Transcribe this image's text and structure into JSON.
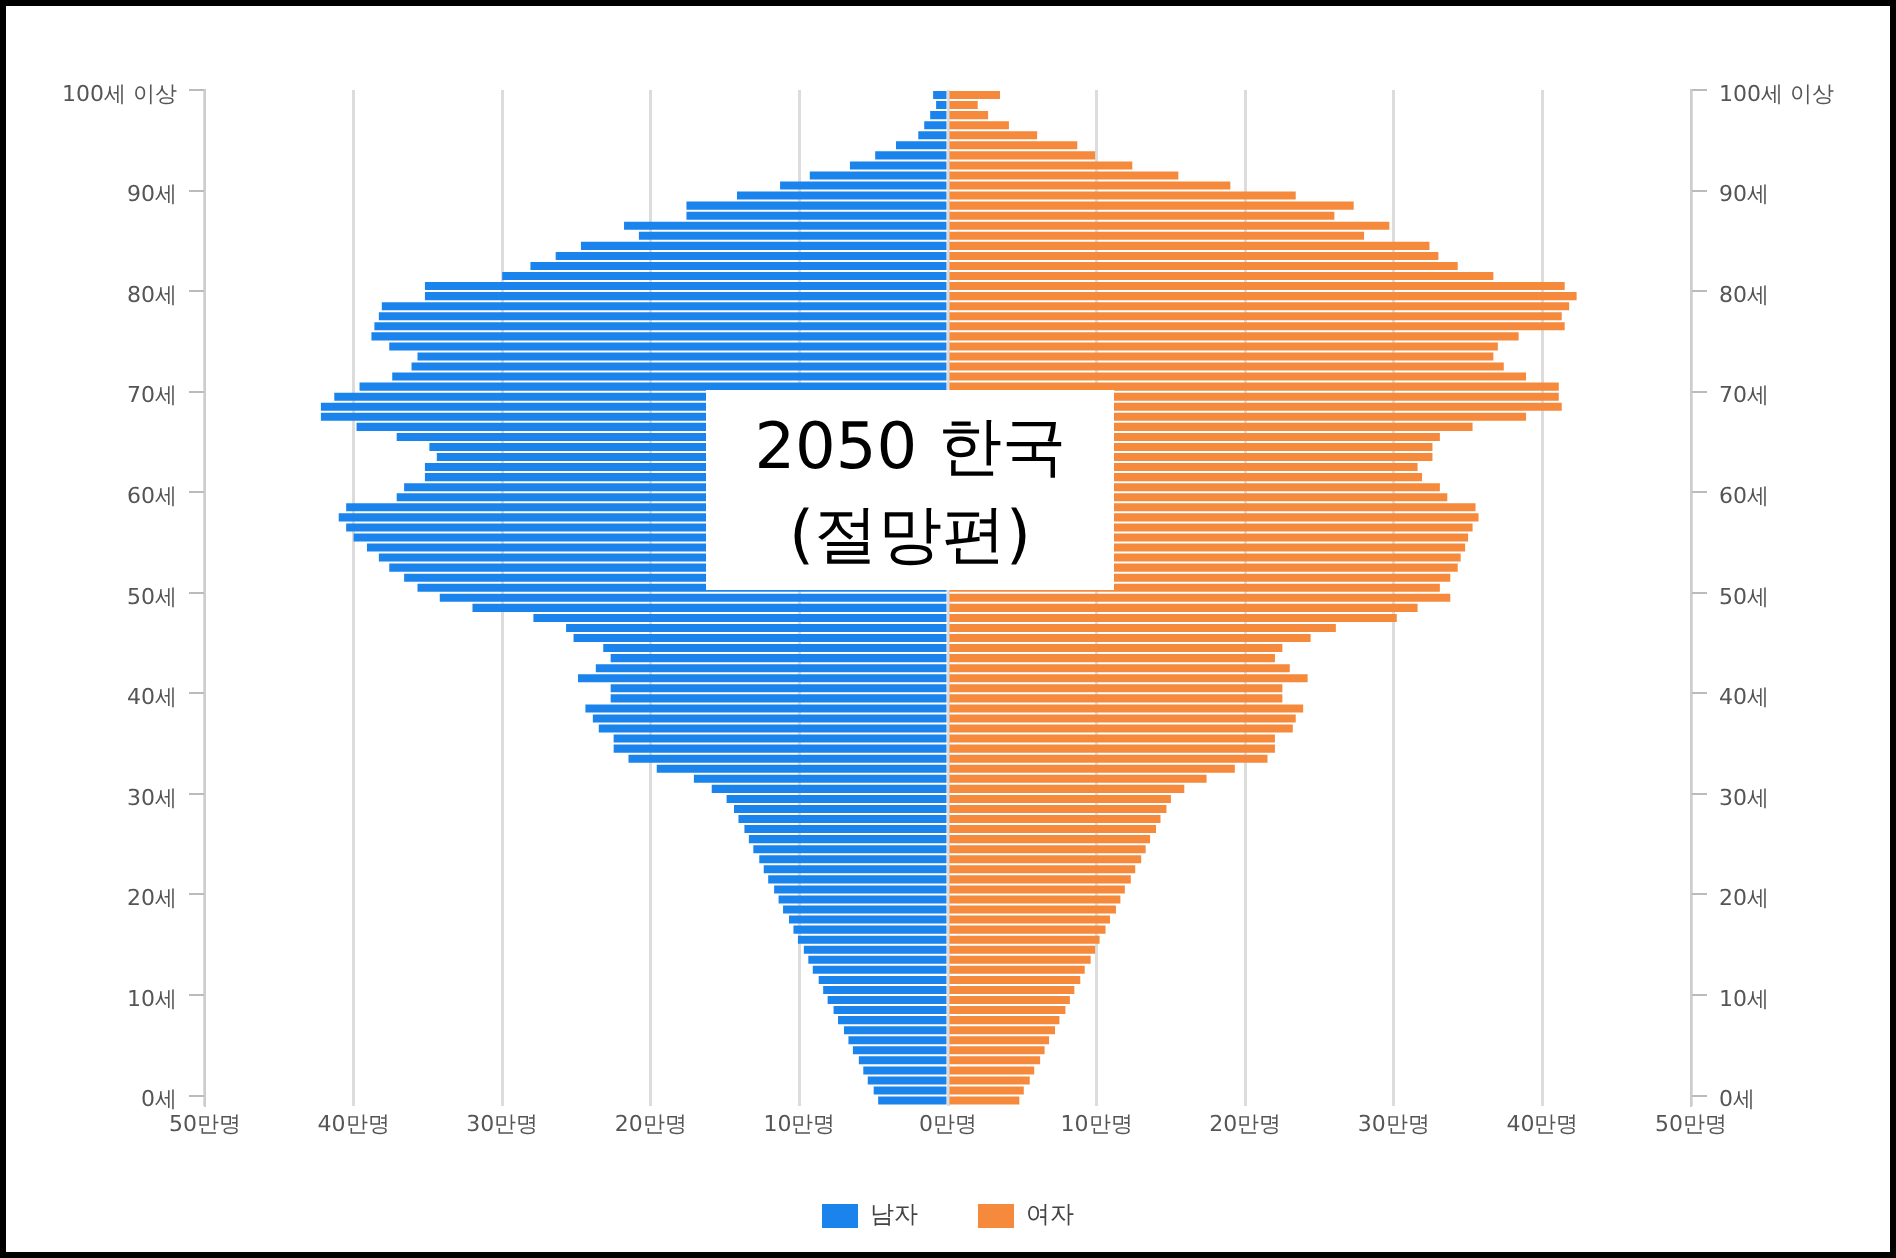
{
  "chart_data": {
    "type": "bar",
    "orientation": "horizontal",
    "categories": [
      "100세 이상",
      null,
      null,
      null,
      null,
      null,
      null,
      null,
      null,
      null,
      "90세",
      null,
      null,
      null,
      null,
      null,
      null,
      null,
      null,
      null,
      "80세",
      null,
      null,
      null,
      null,
      null,
      null,
      null,
      null,
      null,
      "70세",
      null,
      null,
      null,
      null,
      null,
      null,
      null,
      null,
      null,
      "60세",
      null,
      null,
      null,
      null,
      null,
      null,
      null,
      null,
      null,
      "50세",
      null,
      null,
      null,
      null,
      null,
      null,
      null,
      null,
      null,
      "40세",
      null,
      null,
      null,
      null,
      null,
      null,
      null,
      null,
      null,
      "30세",
      null,
      null,
      null,
      null,
      null,
      null,
      null,
      null,
      null,
      "20세",
      null,
      null,
      null,
      null,
      null,
      null,
      null,
      null,
      null,
      "10세",
      null,
      null,
      null,
      null,
      null,
      null,
      null,
      null,
      null,
      "0세"
    ],
    "series": [
      {
        "name": "남자",
        "color": "#1a84ec",
        "values": [
          -1,
          -0.8,
          -1.2,
          -1.6,
          -2,
          -3.5,
          -4.9,
          -6.6,
          -9.3,
          -11.3,
          -14.2,
          -17.6,
          -17.6,
          -21.8,
          -20.8,
          -24.7,
          -26.4,
          -28.1,
          -30,
          -35.2,
          -35.2,
          -38.1,
          -38.3,
          -38.6,
          -38.8,
          -37.6,
          -35.7,
          -36.1,
          -37.4,
          -39.6,
          -41.3,
          -42.2,
          -42.2,
          -39.8,
          -37.1,
          -34.9,
          -34.4,
          -35.2,
          -35.2,
          -36.6,
          -37.1,
          -40.5,
          -41,
          -40.5,
          -40,
          -39.1,
          -38.3,
          -37.6,
          -36.6,
          -35.7,
          -34.2,
          -32,
          -27.9,
          -25.7,
          -25.2,
          -23.2,
          -22.7,
          -23.7,
          -24.9,
          -22.7,
          -22.7,
          -24.4,
          -23.9,
          -23.5,
          -22.5,
          -22.5,
          -21.5,
          -19.6,
          -17.1,
          -15.9,
          -14.9,
          -14.4,
          -14.1,
          -13.7,
          -13.4,
          -13.1,
          -12.7,
          -12.4,
          -12.1,
          -11.7,
          -11.4,
          -11.1,
          -10.7,
          -10.4,
          -10.1,
          -9.7,
          -9.4,
          -9.1,
          -8.7,
          -8.4,
          -8.1,
          -7.7,
          -7.4,
          -7,
          -6.7,
          -6.4,
          -6,
          -5.7,
          -5.4,
          -5,
          -4.7
        ]
      },
      {
        "name": "여자",
        "color": "#f5893c",
        "values": [
          3.5,
          2,
          2.7,
          4.1,
          6,
          8.7,
          9.9,
          12.4,
          15.5,
          19,
          23.4,
          27.3,
          26,
          29.7,
          28,
          32.4,
          33,
          34.3,
          36.7,
          41.5,
          42.3,
          41.8,
          41.3,
          41.5,
          38.4,
          37,
          36.7,
          37.4,
          38.9,
          41.1,
          41.1,
          41.3,
          38.9,
          35.3,
          33.1,
          32.6,
          32.6,
          31.6,
          31.9,
          33.1,
          33.6,
          35.5,
          35.7,
          35.3,
          35,
          34.8,
          34.5,
          34.3,
          33.8,
          33.1,
          33.8,
          31.6,
          30.2,
          26.1,
          24.4,
          22.5,
          22,
          23,
          24.2,
          22.5,
          22.5,
          23.9,
          23.4,
          23.2,
          22,
          22,
          21.5,
          19.3,
          17.4,
          15.9,
          15,
          14.7,
          14.3,
          14,
          13.6,
          13.3,
          13,
          12.6,
          12.3,
          11.9,
          11.6,
          11.3,
          10.9,
          10.6,
          10.2,
          9.9,
          9.6,
          9.2,
          8.9,
          8.5,
          8.2,
          7.9,
          7.5,
          7.2,
          6.8,
          6.5,
          6.2,
          5.8,
          5.5,
          5.1,
          4.8
        ]
      }
    ],
    "xlim": [
      -50,
      50
    ],
    "xticks": [
      {
        "value": -50,
        "label": "50만명"
      },
      {
        "value": -40,
        "label": "40만명"
      },
      {
        "value": -30,
        "label": "30만명"
      },
      {
        "value": -20,
        "label": "20만명"
      },
      {
        "value": -10,
        "label": "10만명"
      },
      {
        "value": 0,
        "label": "0만명"
      },
      {
        "value": 10,
        "label": "10만명"
      },
      {
        "value": 20,
        "label": "20만명"
      },
      {
        "value": 30,
        "label": "30만명"
      },
      {
        "value": 40,
        "label": "40만명"
      },
      {
        "value": 50,
        "label": "50만명"
      }
    ],
    "grid": "x",
    "legend": "bottom",
    "stacked": true,
    "annotations": [
      "2050 한국 (절망편)"
    ]
  }
}
